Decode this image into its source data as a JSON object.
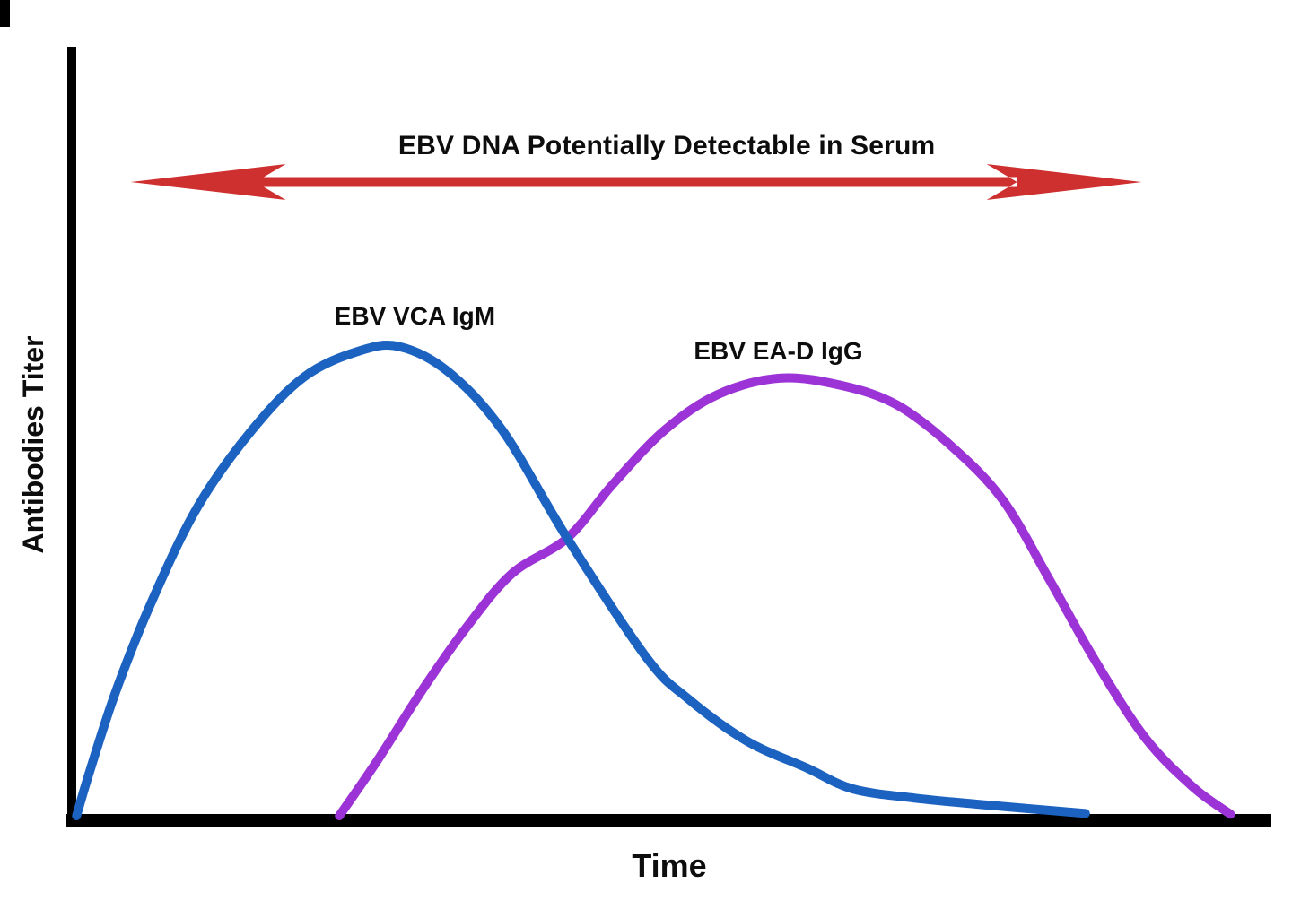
{
  "figure": {
    "background_color": "#ffffff",
    "axis_color": "#000000",
    "text_color": "#0d0d0d"
  },
  "chart_data": {
    "type": "line",
    "title": "",
    "xlabel": "Time",
    "ylabel": "Antibodies Titer",
    "x_axis": {
      "range": [
        0,
        100
      ],
      "ticks": "none",
      "unit": "relative time (unlabeled)"
    },
    "y_axis": {
      "range": [
        0,
        100
      ],
      "ticks": "none",
      "unit": "relative titer (unlabeled)"
    },
    "grid": false,
    "legend": "inline curve labels",
    "series": [
      {
        "name": "EBV VCA IgM",
        "color": "#1b62c1",
        "stroke_width": 10,
        "label_pos": {
          "t": 28.6,
          "v": 64.9
        },
        "peak": {
          "t": 27.3,
          "v": 61
        },
        "points": [
          [
            0.4,
            0
          ],
          [
            1.5,
            5.8
          ],
          [
            3.7,
            16.3
          ],
          [
            6.7,
            28.0
          ],
          [
            10.5,
            40.2
          ],
          [
            15.0,
            50.1
          ],
          [
            19.4,
            57.1
          ],
          [
            23.9,
            60.4
          ],
          [
            27.3,
            61.0
          ],
          [
            31.4,
            57.7
          ],
          [
            35.9,
            50.1
          ],
          [
            41.3,
            36.1
          ],
          [
            47.9,
            20.6
          ],
          [
            51.4,
            15.2
          ],
          [
            56.3,
            9.7
          ],
          [
            61.3,
            6.2
          ],
          [
            65.1,
            3.5
          ],
          [
            70.3,
            2.3
          ],
          [
            76.3,
            1.4
          ],
          [
            84.5,
            0.3
          ]
        ]
      },
      {
        "name": "EBV EA-D IgG",
        "color": "#9c33d6",
        "stroke_width": 10,
        "label_pos": {
          "t": 58.9,
          "v": 60.4
        },
        "peak": {
          "t": 59.1,
          "v": 56.9
        },
        "points": [
          [
            22.3,
            0
          ],
          [
            25.4,
            7.0
          ],
          [
            29.2,
            16.3
          ],
          [
            32.9,
            24.5
          ],
          [
            36.7,
            31.5
          ],
          [
            41.3,
            36.1
          ],
          [
            45.1,
            43.1
          ],
          [
            49.4,
            50.1
          ],
          [
            53.9,
            54.8
          ],
          [
            59.1,
            56.9
          ],
          [
            64.3,
            55.9
          ],
          [
            68.8,
            53.4
          ],
          [
            73.3,
            48.1
          ],
          [
            77.6,
            41.1
          ],
          [
            81.5,
            30.7
          ],
          [
            85.3,
            20.2
          ],
          [
            89.5,
            10.1
          ],
          [
            93.5,
            3.7
          ],
          [
            96.6,
            0.2
          ]
        ]
      }
    ],
    "annotations": [
      {
        "type": "double-headed-arrow",
        "label": "EBV DNA Potentially Detectable in Serum",
        "color": "#ce3030",
        "t_start": 4.9,
        "t_end": 89.2,
        "v": 82.4,
        "label_pos": {
          "t": 49.6,
          "v": 87.1
        }
      }
    ]
  }
}
